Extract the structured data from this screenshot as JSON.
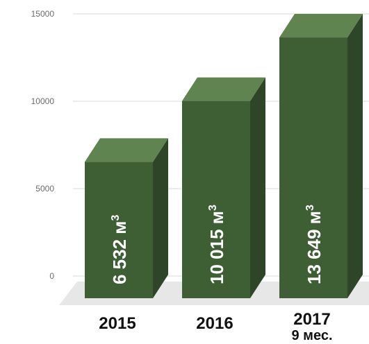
{
  "chart_data": {
    "type": "bar",
    "categories": [
      "2015",
      "2016",
      "2017"
    ],
    "category_sublabels": [
      "",
      "",
      "9 мес."
    ],
    "values": [
      6532,
      10015,
      13649
    ],
    "data_labels": [
      "6 532 м",
      "10 015 м",
      "13 649 м"
    ],
    "data_label_superscript": "3",
    "yticks": [
      "0",
      "5000",
      "10000",
      "15000"
    ],
    "ytick_values": [
      0,
      5000,
      10000,
      15000
    ],
    "ylim": [
      0,
      15000
    ],
    "grid": true,
    "colors": {
      "bar_front": "#3e5e34",
      "bar_top": "#5f8450",
      "bar_side": "#2e4627",
      "floor": "#e7e7e7"
    }
  }
}
